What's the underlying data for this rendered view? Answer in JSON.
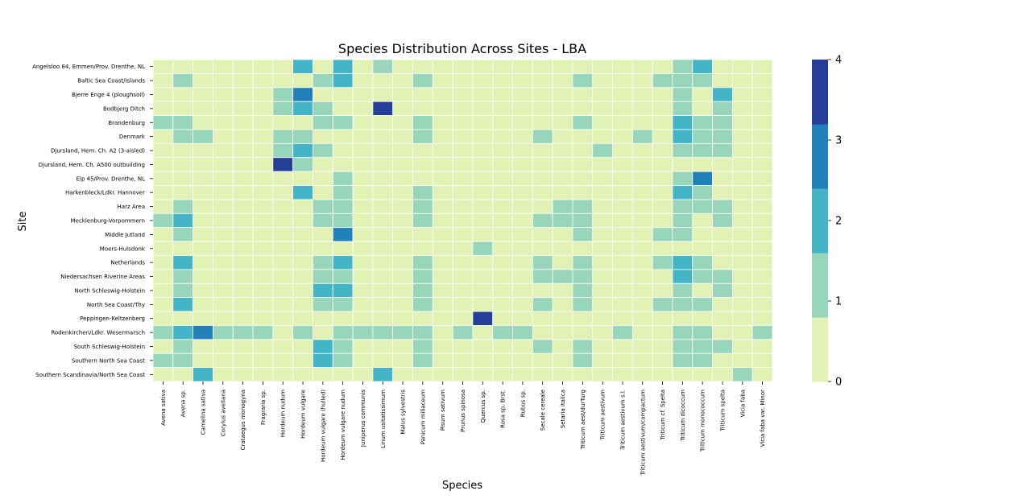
{
  "chart_data": {
    "type": "heatmap",
    "title": "Species Distribution Across Sites - LBA",
    "xlabel": "Species",
    "ylabel": "Site",
    "columns": [
      "Avena sativa",
      "Avena sp.",
      "Camelina sativa",
      "Corylus avellana",
      "Crataegus monogyna",
      "Fragraria sp.",
      "Hordeum nudum",
      "Hordeum vulgare",
      "Hordeum vulgare (hulled)",
      "Hordeum vulgare nudum",
      "Juniperus communis",
      "Linum usitatissimum",
      "Malus sylvestris",
      "Panicum miliaceum",
      "Pisum sativum",
      "Prunus spinosa",
      "Quercus sp.",
      "Rosa sp. Brst.",
      "Rubus sp.",
      "Secale cereale",
      "Setaria italica",
      "Triticum aest/durTurg",
      "Triticum aestivum",
      "Triticum aestivum s.l.",
      "Triticum aestivum/compactum",
      "Triticum cf. Spelta",
      "Triticum dicoccum",
      "Triticum monococcum",
      "Triticum spelta",
      "Vicia faba",
      "Vicia faba var. Minor"
    ],
    "rows": [
      "Angelsloo 84, Emmen/Prov. Drenthe, NL",
      "Baltic Sea Coast/Islands",
      "Bjerre Enge 4 (ploughsoil)",
      "Bodbjerg Ditch",
      "Brandenburg",
      "Denmark",
      "Djursland, Hem. Ch. A2 (3-aisled)",
      "Djursland, Hem. Ch. A500 outbuilding",
      "Elp 45/Prov. Drenthe, NL",
      "Harkenbleck/Ldkr. Hannover",
      "Harz Area",
      "Mecklenburg-Vorpommern",
      "Middle Jutland",
      "Moers-Hulsdonk",
      "Netherlands",
      "Niedersachsen Riverine Areas",
      "North Schleswig-Holstein",
      "North Sea Coast/Thy",
      "Peppingen-Keltzenberg",
      "Rodenkirchen/Ldkr. Wesermarsch",
      "South Schleswig-Holstein",
      "Southern North Sea Coast",
      "Southern Scandinavia/North Sea Coast"
    ],
    "values": [
      [
        0,
        0,
        0,
        0,
        0,
        0,
        0,
        2,
        0,
        2,
        0,
        1,
        0,
        0,
        0,
        0,
        0,
        0,
        0,
        0,
        0,
        0,
        0,
        0,
        0,
        0,
        1,
        2,
        0,
        0,
        0
      ],
      [
        0,
        1,
        0,
        0,
        0,
        0,
        0,
        0,
        1,
        2,
        0,
        0,
        0,
        1,
        0,
        0,
        0,
        0,
        0,
        0,
        0,
        1,
        0,
        0,
        0,
        1,
        1,
        1,
        0,
        0,
        0
      ],
      [
        0,
        0,
        0,
        0,
        0,
        0,
        1,
        3,
        0,
        0,
        0,
        0,
        0,
        0,
        0,
        0,
        0,
        0,
        0,
        0,
        0,
        0,
        0,
        0,
        0,
        0,
        1,
        0,
        2,
        0,
        0
      ],
      [
        0,
        0,
        0,
        0,
        0,
        0,
        1,
        2,
        1,
        0,
        0,
        4,
        0,
        0,
        0,
        0,
        0,
        0,
        0,
        0,
        0,
        0,
        0,
        0,
        0,
        0,
        1,
        0,
        1,
        0,
        0
      ],
      [
        1,
        1,
        0,
        0,
        0,
        0,
        0,
        0,
        1,
        1,
        0,
        0,
        0,
        1,
        0,
        0,
        0,
        0,
        0,
        0,
        0,
        1,
        0,
        0,
        0,
        0,
        2,
        1,
        1,
        0,
        0
      ],
      [
        0,
        1,
        1,
        0,
        0,
        0,
        1,
        1,
        0,
        0,
        0,
        0,
        0,
        1,
        0,
        0,
        0,
        0,
        0,
        1,
        0,
        0,
        0,
        0,
        1,
        0,
        2,
        1,
        1,
        0,
        0
      ],
      [
        0,
        0,
        0,
        0,
        0,
        0,
        1,
        2,
        1,
        0,
        0,
        0,
        0,
        0,
        0,
        0,
        0,
        0,
        0,
        0,
        0,
        0,
        1,
        0,
        0,
        0,
        1,
        1,
        1,
        0,
        0
      ],
      [
        0,
        0,
        0,
        0,
        0,
        0,
        4,
        1,
        0,
        0,
        0,
        0,
        0,
        0,
        0,
        0,
        0,
        0,
        0,
        0,
        0,
        0,
        0,
        0,
        0,
        0,
        0,
        0,
        0,
        0,
        0
      ],
      [
        0,
        0,
        0,
        0,
        0,
        0,
        0,
        0,
        0,
        1,
        0,
        0,
        0,
        0,
        0,
        0,
        0,
        0,
        0,
        0,
        0,
        0,
        0,
        0,
        0,
        0,
        1,
        3,
        0,
        0,
        0
      ],
      [
        0,
        0,
        0,
        0,
        0,
        0,
        0,
        2,
        0,
        1,
        0,
        0,
        0,
        1,
        0,
        0,
        0,
        0,
        0,
        0,
        0,
        0,
        0,
        0,
        0,
        0,
        2,
        1,
        0,
        0,
        0
      ],
      [
        0,
        1,
        0,
        0,
        0,
        0,
        0,
        0,
        1,
        1,
        0,
        0,
        0,
        1,
        0,
        0,
        0,
        0,
        0,
        0,
        1,
        1,
        0,
        0,
        0,
        0,
        1,
        1,
        1,
        0,
        0
      ],
      [
        1,
        2,
        0,
        0,
        0,
        0,
        0,
        0,
        1,
        1,
        0,
        0,
        0,
        1,
        0,
        0,
        0,
        0,
        0,
        1,
        1,
        1,
        0,
        0,
        0,
        0,
        1,
        0,
        1,
        0,
        0
      ],
      [
        0,
        1,
        0,
        0,
        0,
        0,
        0,
        0,
        0,
        3,
        0,
        0,
        0,
        0,
        0,
        0,
        0,
        0,
        0,
        0,
        0,
        1,
        0,
        0,
        0,
        1,
        1,
        0,
        0,
        0,
        0
      ],
      [
        0,
        0,
        0,
        0,
        0,
        0,
        0,
        0,
        0,
        0,
        0,
        0,
        0,
        0,
        0,
        0,
        1,
        0,
        0,
        0,
        0,
        0,
        0,
        0,
        0,
        0,
        0,
        0,
        0,
        0,
        0
      ],
      [
        0,
        2,
        0,
        0,
        0,
        0,
        0,
        0,
        1,
        2,
        0,
        0,
        0,
        1,
        0,
        0,
        0,
        0,
        0,
        1,
        0,
        1,
        0,
        0,
        0,
        1,
        2,
        1,
        0,
        0,
        0
      ],
      [
        0,
        1,
        0,
        0,
        0,
        0,
        0,
        0,
        1,
        1,
        0,
        0,
        0,
        1,
        0,
        0,
        0,
        0,
        0,
        1,
        1,
        1,
        0,
        0,
        0,
        0,
        2,
        1,
        1,
        0,
        0
      ],
      [
        0,
        1,
        0,
        0,
        0,
        0,
        0,
        0,
        2,
        2,
        0,
        0,
        0,
        1,
        0,
        0,
        0,
        0,
        0,
        0,
        0,
        1,
        0,
        0,
        0,
        0,
        1,
        0,
        1,
        0,
        0
      ],
      [
        0,
        2,
        0,
        0,
        0,
        0,
        0,
        0,
        1,
        1,
        0,
        0,
        0,
        1,
        0,
        0,
        0,
        0,
        0,
        1,
        0,
        1,
        0,
        0,
        0,
        1,
        1,
        1,
        0,
        0,
        0
      ],
      [
        0,
        0,
        0,
        0,
        0,
        0,
        0,
        0,
        0,
        0,
        0,
        0,
        0,
        0,
        0,
        0,
        4,
        0,
        0,
        0,
        0,
        0,
        0,
        0,
        0,
        0,
        0,
        0,
        0,
        0,
        0
      ],
      [
        1,
        2,
        3,
        1,
        1,
        1,
        0,
        1,
        0,
        1,
        1,
        1,
        1,
        1,
        0,
        1,
        0,
        1,
        1,
        0,
        0,
        0,
        0,
        1,
        0,
        0,
        1,
        1,
        0,
        0,
        1
      ],
      [
        0,
        1,
        0,
        0,
        0,
        0,
        0,
        0,
        2,
        1,
        0,
        0,
        0,
        1,
        0,
        0,
        0,
        0,
        0,
        1,
        0,
        1,
        0,
        0,
        0,
        0,
        1,
        1,
        1,
        0,
        0
      ],
      [
        1,
        1,
        0,
        0,
        0,
        0,
        0,
        0,
        2,
        1,
        0,
        0,
        0,
        1,
        0,
        0,
        0,
        0,
        0,
        0,
        0,
        1,
        0,
        0,
        0,
        0,
        1,
        1,
        0,
        0,
        0
      ],
      [
        0,
        0,
        2,
        0,
        0,
        0,
        0,
        0,
        0,
        0,
        0,
        2,
        0,
        0,
        0,
        0,
        0,
        0,
        0,
        0,
        0,
        0,
        0,
        0,
        0,
        0,
        0,
        0,
        0,
        1,
        0
      ]
    ],
    "colorscale": [
      "#e1f2b4",
      "#98d6bb",
      "#44b5c6",
      "#2180b8",
      "#253f99"
    ],
    "vmin": 0,
    "vmax": 4,
    "colorbar_ticks": [
      "0",
      "1",
      "2",
      "3",
      "4"
    ],
    "grid": true
  }
}
